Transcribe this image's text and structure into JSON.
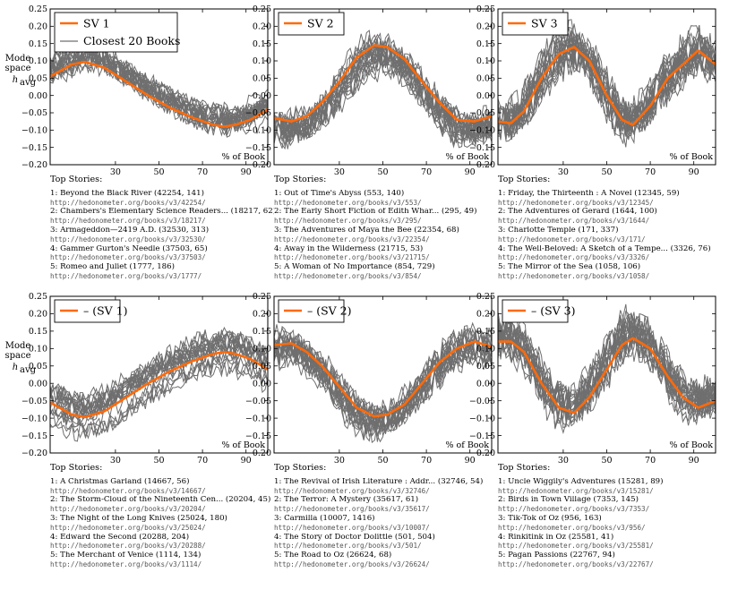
{
  "colors": {
    "sv": "#ff6a0a",
    "books": "#6f6f6f",
    "frame": "#000000"
  },
  "ylabel_lines": [
    "Mode",
    "space",
    "h",
    "avg"
  ],
  "ylim": [
    -0.2,
    0.25
  ],
  "xlim": [
    0,
    100
  ],
  "yticks": [
    "0.25",
    "0.20",
    "0.15",
    "0.10",
    "0.05",
    "0.00",
    "−0.05",
    "−0.10",
    "−0.15",
    "−0.20"
  ],
  "xticks": [
    "30",
    "50",
    "70",
    "90"
  ],
  "xaxis_label": "% of Book",
  "stories_header": "Top Stories:",
  "legend_books_label": "Closest 20 Books",
  "chart_data": [
    {
      "type": "line",
      "sv_label": "SV 1",
      "show_books_legend": true,
      "series": [
        {
          "name": "SV 1",
          "x": [
            0,
            10,
            16,
            25,
            35,
            45,
            55,
            65,
            75,
            80,
            85,
            92,
            100
          ],
          "values": [
            0.055,
            0.09,
            0.097,
            0.08,
            0.04,
            0.0,
            -0.035,
            -0.063,
            -0.085,
            -0.09,
            -0.085,
            -0.07,
            -0.04
          ]
        }
      ],
      "stories": [
        {
          "title": "1: Beyond the Black River (42254, 141)",
          "url": "http://hedonometer.org/books/v3/42254/"
        },
        {
          "title": "2: Chambers's Elementary Science Readers... (18217, 62)",
          "url": "http://hedonometer.org/books/v3/18217/"
        },
        {
          "title": "3: Armageddon—2419 A.D. (32530, 313)",
          "url": "http://hedonometer.org/books/v3/32530/"
        },
        {
          "title": "4: Gammer Gurton's Needle (37503, 65)",
          "url": "http://hedonometer.org/books/v3/37503/"
        },
        {
          "title": "5: Romeo and Juliet (1777, 186)",
          "url": "http://hedonometer.org/books/v3/1777/"
        }
      ]
    },
    {
      "type": "line",
      "sv_label": "SV 2",
      "show_books_legend": false,
      "series": [
        {
          "name": "SV 2",
          "x": [
            0,
            8,
            15,
            22,
            30,
            38,
            46,
            52,
            60,
            68,
            76,
            84,
            92,
            100
          ],
          "values": [
            -0.065,
            -0.075,
            -0.06,
            -0.02,
            0.04,
            0.11,
            0.145,
            0.14,
            0.105,
            0.04,
            -0.02,
            -0.07,
            -0.075,
            -0.06
          ]
        }
      ],
      "stories": [
        {
          "title": "1: Out of Time's Abyss (553, 140)",
          "url": "http://hedonometer.org/books/v3/553/"
        },
        {
          "title": "2: The Early Short Fiction of Edith Whar... (295, 49)",
          "url": "http://hedonometer.org/books/v3/295/"
        },
        {
          "title": "3: The Adventures of Maya the Bee (22354, 68)",
          "url": "http://hedonometer.org/books/v3/22354/"
        },
        {
          "title": "4: Away in the Wilderness (21715, 53)",
          "url": "http://hedonometer.org/books/v3/21715/"
        },
        {
          "title": "5: A Woman of No Importance (854, 729)",
          "url": "http://hedonometer.org/books/v3/854/"
        }
      ]
    },
    {
      "type": "line",
      "sv_label": "SV 3",
      "show_books_legend": false,
      "series": [
        {
          "name": "SV 3",
          "x": [
            0,
            6,
            12,
            20,
            28,
            35,
            42,
            50,
            57,
            62,
            70,
            78,
            85,
            92,
            100
          ],
          "values": [
            -0.075,
            -0.08,
            -0.045,
            0.05,
            0.12,
            0.14,
            0.1,
            0.0,
            -0.07,
            -0.085,
            -0.03,
            0.05,
            0.09,
            0.13,
            0.09
          ]
        }
      ],
      "stories": [
        {
          "title": "1: Friday, the Thirteenth : A Novel (12345, 59)",
          "url": "http://hedonometer.org/books/v3/12345/"
        },
        {
          "title": "2: The Adventures of Gerard (1644, 100)",
          "url": "http://hedonometer.org/books/v3/1644/"
        },
        {
          "title": "3: Charlotte Temple (171, 337)",
          "url": "http://hedonometer.org/books/v3/171/"
        },
        {
          "title": "4: The Well-Beloved: A Sketch of a Tempe... (3326, 76)",
          "url": "http://hedonometer.org/books/v3/3326/"
        },
        {
          "title": "5: The Mirror of the Sea (1058, 106)",
          "url": "http://hedonometer.org/books/v3/1058/"
        }
      ]
    },
    {
      "type": "line",
      "sv_label": "– (SV 1)",
      "show_books_legend": false,
      "series": [
        {
          "name": "– (SV 1)",
          "x": [
            0,
            10,
            16,
            25,
            35,
            45,
            55,
            65,
            75,
            80,
            85,
            92,
            100
          ],
          "values": [
            -0.055,
            -0.09,
            -0.097,
            -0.08,
            -0.04,
            0.0,
            0.035,
            0.063,
            0.085,
            0.09,
            0.085,
            0.07,
            0.04
          ]
        }
      ],
      "stories": [
        {
          "title": "1: A Christmas Garland (14667, 56)",
          "url": "http://hedonometer.org/books/v3/14667/"
        },
        {
          "title": "2: The Storm-Cloud of the Nineteenth Cen... (20204, 45)",
          "url": "http://hedonometer.org/books/v3/20204/"
        },
        {
          "title": "3: The Night of the Long Knives (25024, 180)",
          "url": "http://hedonometer.org/books/v3/25024/"
        },
        {
          "title": "4: Edward the Second (20288, 204)",
          "url": "http://hedonometer.org/books/v3/20288/"
        },
        {
          "title": "5: The Merchant of Venice (1114, 134)",
          "url": "http://hedonometer.org/books/v3/1114/"
        }
      ]
    },
    {
      "type": "line",
      "sv_label": "– (SV 2)",
      "show_books_legend": false,
      "series": [
        {
          "name": "– (SV 2)",
          "x": [
            0,
            8,
            15,
            22,
            30,
            38,
            46,
            52,
            60,
            68,
            76,
            84,
            92,
            100
          ],
          "values": [
            0.11,
            0.115,
            0.09,
            0.05,
            -0.01,
            -0.07,
            -0.095,
            -0.09,
            -0.06,
            0.0,
            0.06,
            0.1,
            0.12,
            0.105
          ]
        }
      ],
      "stories": [
        {
          "title": "1: The Revival of Irish Literature : Addr... (32746, 54)",
          "url": "http://hedonometer.org/books/v3/32746/"
        },
        {
          "title": "2: The Terror: A Mystery (35617, 61)",
          "url": "http://hedonometer.org/books/v3/35617/"
        },
        {
          "title": "3: Carmilla (10007, 1416)",
          "url": "http://hedonometer.org/books/v3/10007/"
        },
        {
          "title": "4: The Story of Doctor Dolittle (501, 504)",
          "url": "http://hedonometer.org/books/v3/501/"
        },
        {
          "title": "5: The Road to Oz (26624, 68)",
          "url": "http://hedonometer.org/books/v3/26624/"
        }
      ]
    },
    {
      "type": "line",
      "sv_label": "– (SV 3)",
      "show_books_legend": false,
      "series": [
        {
          "name": "– (SV 3)",
          "x": [
            0,
            6,
            12,
            20,
            28,
            35,
            42,
            50,
            57,
            62,
            70,
            78,
            85,
            92,
            100
          ],
          "values": [
            0.12,
            0.12,
            0.09,
            0.0,
            -0.07,
            -0.085,
            -0.04,
            0.04,
            0.11,
            0.13,
            0.1,
            0.02,
            -0.04,
            -0.07,
            -0.05
          ]
        }
      ],
      "stories": [
        {
          "title": "1: Uncle Wiggily's Adventures (15281, 89)",
          "url": "http://hedonometer.org/books/v3/15281/"
        },
        {
          "title": "2: Birds in Town  Village (7353, 145)",
          "url": "http://hedonometer.org/books/v3/7353/"
        },
        {
          "title": "3: Tik-Tok of Oz (956, 163)",
          "url": "http://hedonometer.org/books/v3/956/"
        },
        {
          "title": "4: Rinkitink in Oz (25581, 41)",
          "url": "http://hedonometer.org/books/v3/25581/"
        },
        {
          "title": "5: Pagan Passions (22767, 94)",
          "url": "http://hedonometer.org/books/v3/22767/"
        }
      ]
    }
  ]
}
